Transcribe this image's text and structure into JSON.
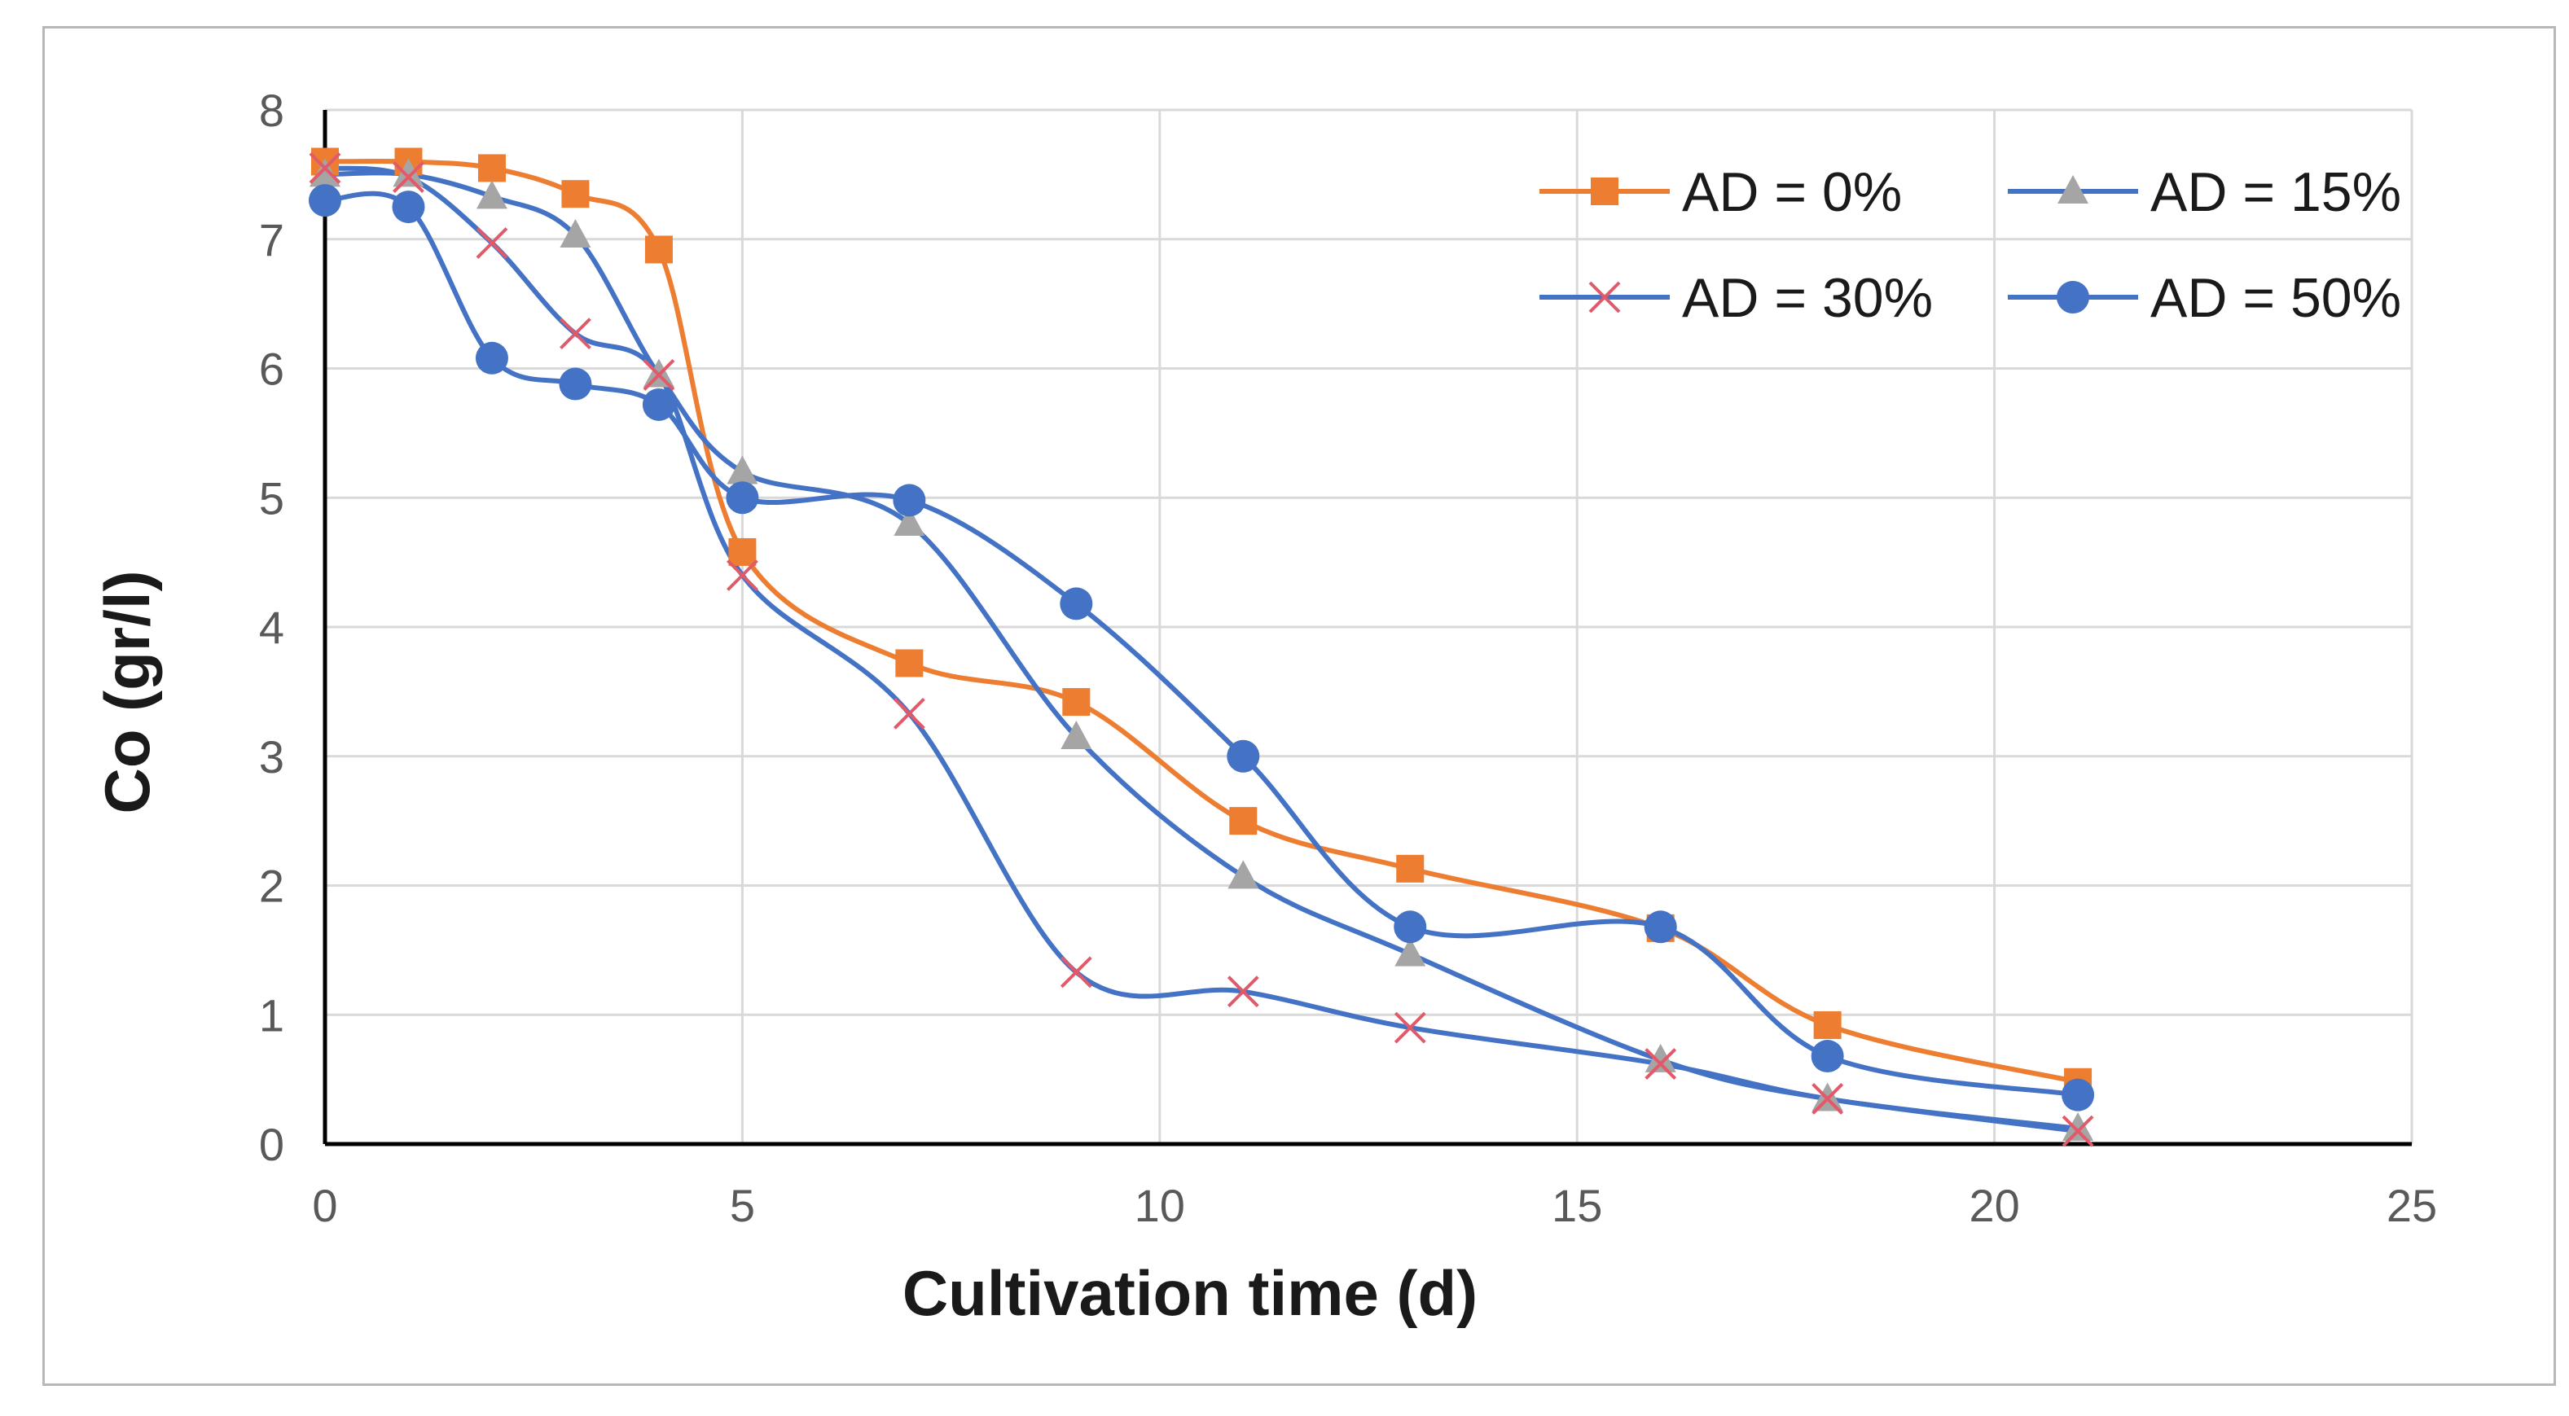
{
  "chart_data": {
    "type": "line",
    "title": "",
    "xlabel": "Cultivation time (d)",
    "ylabel": "Co (gr/l)",
    "xlim": [
      0,
      25
    ],
    "ylim": [
      0,
      8
    ],
    "xticks": [
      0,
      5,
      10,
      15,
      20,
      25
    ],
    "yticks": [
      0,
      1,
      2,
      3,
      4,
      5,
      6,
      7,
      8
    ],
    "grid": true,
    "smooth": true,
    "legend_position": "top-right",
    "series": [
      {
        "name": "AD = 0%",
        "line_color": "#ED7D31",
        "marker": "square",
        "marker_color": "#ED7D31",
        "x": [
          0,
          1,
          2,
          3,
          4,
          5,
          7,
          9,
          11,
          13,
          16,
          18,
          21
        ],
        "y": [
          7.6,
          7.6,
          7.55,
          7.35,
          6.92,
          4.58,
          3.72,
          3.42,
          2.5,
          2.13,
          1.67,
          0.92,
          0.48
        ]
      },
      {
        "name": "AD = 15%",
        "line_color": "#4472C4",
        "marker": "triangle",
        "marker_color": "#A5A5A5",
        "x": [
          0,
          1,
          2,
          3,
          4,
          5,
          7,
          9,
          11,
          13,
          16,
          18,
          21
        ],
        "y": [
          7.5,
          7.5,
          7.33,
          7.03,
          5.95,
          5.2,
          4.8,
          3.15,
          2.07,
          1.47,
          0.65,
          0.35,
          0.12
        ]
      },
      {
        "name": "AD = 30%",
        "line_color": "#4472C4",
        "marker": "x",
        "marker_color": "#E05A6A",
        "x": [
          0,
          1,
          2,
          3,
          4,
          5,
          7,
          9,
          11,
          13,
          16,
          18,
          21
        ],
        "y": [
          7.55,
          7.48,
          6.97,
          6.27,
          5.95,
          4.4,
          3.33,
          1.33,
          1.18,
          0.9,
          0.62,
          0.35,
          0.1
        ]
      },
      {
        "name": "AD = 50%",
        "line_color": "#4472C4",
        "marker": "circle",
        "marker_color": "#4472C4",
        "x": [
          0,
          1,
          2,
          3,
          4,
          5,
          7,
          9,
          11,
          13,
          16,
          18,
          21
        ],
        "y": [
          7.3,
          7.25,
          6.08,
          5.88,
          5.72,
          5.0,
          4.98,
          4.18,
          3.0,
          1.68,
          1.68,
          0.68,
          0.38
        ]
      }
    ]
  }
}
